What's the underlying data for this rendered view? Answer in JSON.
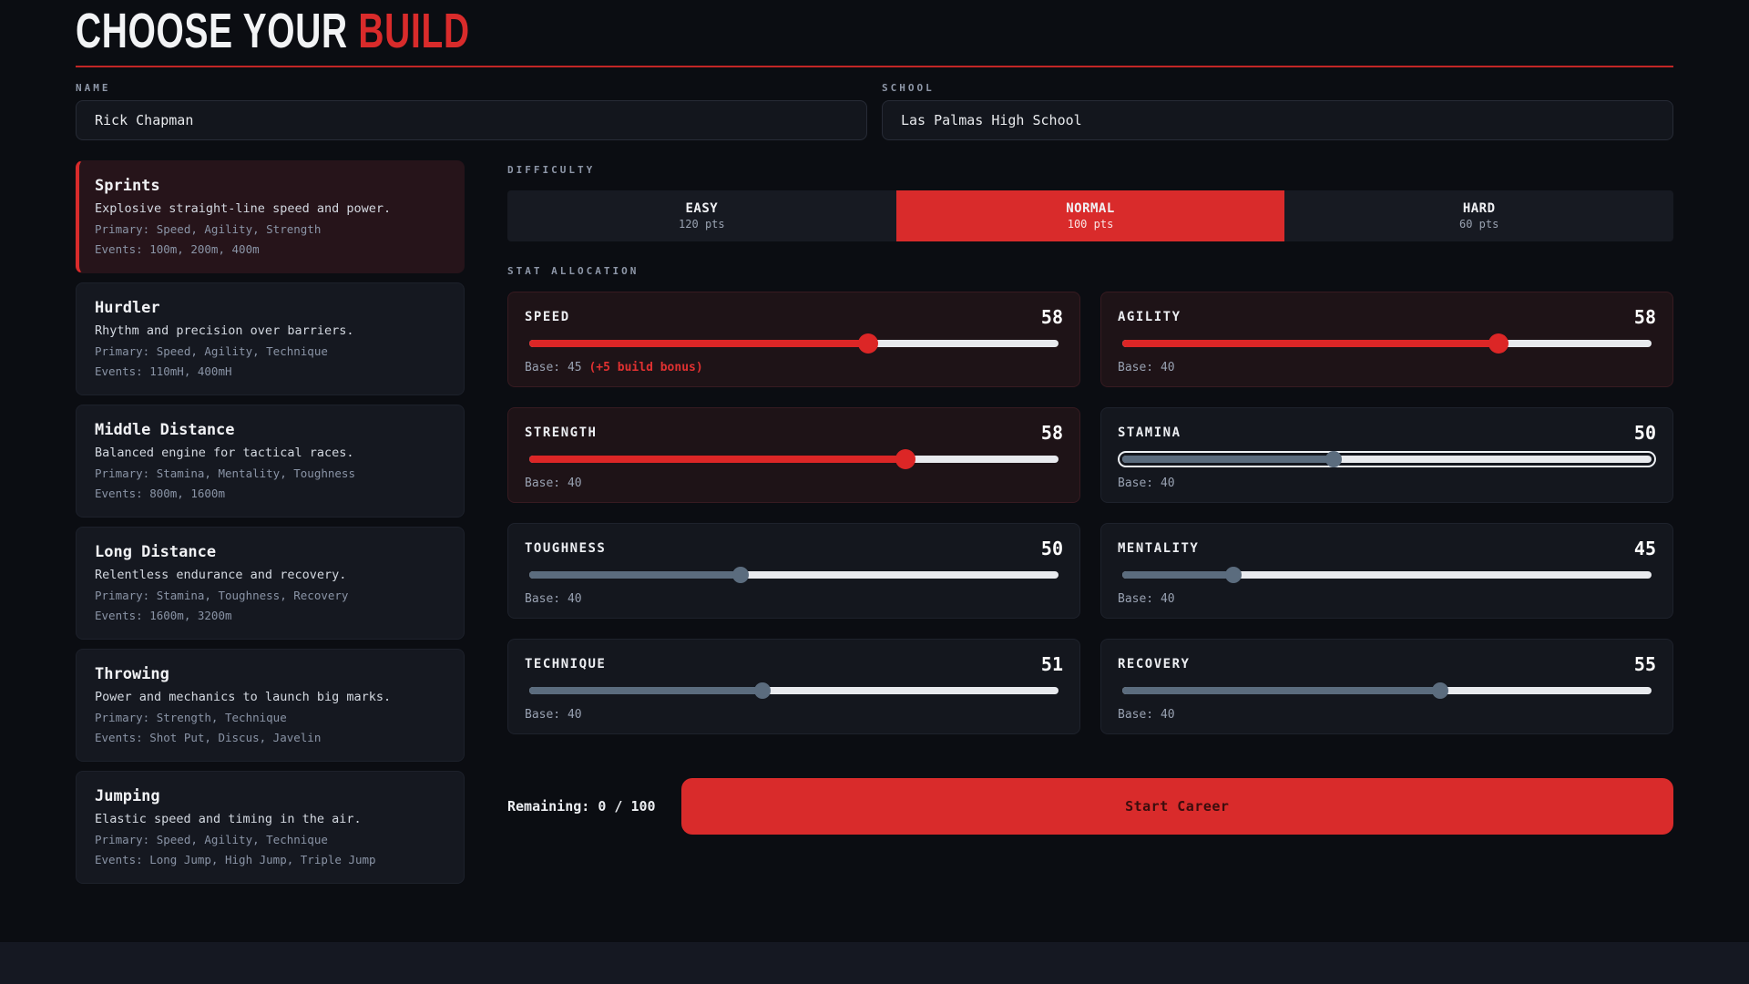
{
  "page": {
    "title_prefix": "CHOOSE YOUR ",
    "title_accent": "BUILD"
  },
  "colors": {
    "accent_red": "#d92b2b",
    "slider_red": "#dc2626",
    "slider_slate": "#5b6c7e",
    "track_light": "#e8eaee",
    "background": "#0b0d12",
    "card": "#14171e",
    "selected_card_tint": "#26141a"
  },
  "form": {
    "name": {
      "label": "NAME",
      "value": "Rick Chapman"
    },
    "school": {
      "label": "SCHOOL",
      "value": "Las Palmas High School"
    }
  },
  "builds": {
    "items": [
      {
        "title": "Sprints",
        "desc": "Explosive straight-line speed and power.",
        "primary": "Primary: Speed, Agility, Strength",
        "events": "Events: 100m, 200m, 400m",
        "selected": true
      },
      {
        "title": "Hurdler",
        "desc": "Rhythm and precision over barriers.",
        "primary": "Primary: Speed, Agility, Technique",
        "events": "Events: 110mH, 400mH",
        "selected": false
      },
      {
        "title": "Middle Distance",
        "desc": "Balanced engine for tactical races.",
        "primary": "Primary: Stamina, Mentality, Toughness",
        "events": "Events: 800m, 1600m",
        "selected": false
      },
      {
        "title": "Long Distance",
        "desc": "Relentless endurance and recovery.",
        "primary": "Primary: Stamina, Toughness, Recovery",
        "events": "Events: 1600m, 3200m",
        "selected": false
      },
      {
        "title": "Throwing",
        "desc": "Power and mechanics to launch big marks.",
        "primary": "Primary: Strength, Technique",
        "events": "Events: Shot Put, Discus, Javelin",
        "selected": false
      },
      {
        "title": "Jumping",
        "desc": "Elastic speed and timing in the air.",
        "primary": "Primary: Speed, Agility, Technique",
        "events": "Events: Long Jump, High Jump, Triple Jump",
        "selected": false
      }
    ]
  },
  "difficulty": {
    "label": "DIFFICULTY",
    "options": [
      {
        "name": "EASY",
        "pts": "120 pts",
        "selected": false
      },
      {
        "name": "NORMAL",
        "pts": "100 pts",
        "selected": true
      },
      {
        "name": "HARD",
        "pts": "60 pts",
        "selected": false
      }
    ]
  },
  "stats": {
    "label": "STAT ALLOCATION",
    "items": [
      {
        "name": "SPEED",
        "value": 58,
        "base": "Base: 45",
        "bonus": "(+5 build bonus)",
        "fill": 64,
        "primary": true,
        "focused": false
      },
      {
        "name": "AGILITY",
        "value": 58,
        "base": "Base: 40",
        "fill": 71,
        "primary": true,
        "focused": false
      },
      {
        "name": "STRENGTH",
        "value": 58,
        "base": "Base: 40",
        "fill": 71,
        "primary": true,
        "focused": false
      },
      {
        "name": "STAMINA",
        "value": 50,
        "base": "Base: 40",
        "fill": 40,
        "primary": false,
        "focused": true
      },
      {
        "name": "TOUGHNESS",
        "value": 50,
        "base": "Base: 40",
        "fill": 40,
        "primary": false,
        "focused": false
      },
      {
        "name": "MENTALITY",
        "value": 45,
        "base": "Base: 40",
        "fill": 21,
        "primary": false,
        "focused": false
      },
      {
        "name": "TECHNIQUE",
        "value": 51,
        "base": "Base: 40",
        "fill": 44,
        "primary": false,
        "focused": false
      },
      {
        "name": "RECOVERY",
        "value": 55,
        "base": "Base: 40",
        "fill": 60,
        "primary": false,
        "focused": false
      }
    ]
  },
  "footer": {
    "remaining": "Remaining: 0 / 100",
    "start_button": "Start Career"
  }
}
